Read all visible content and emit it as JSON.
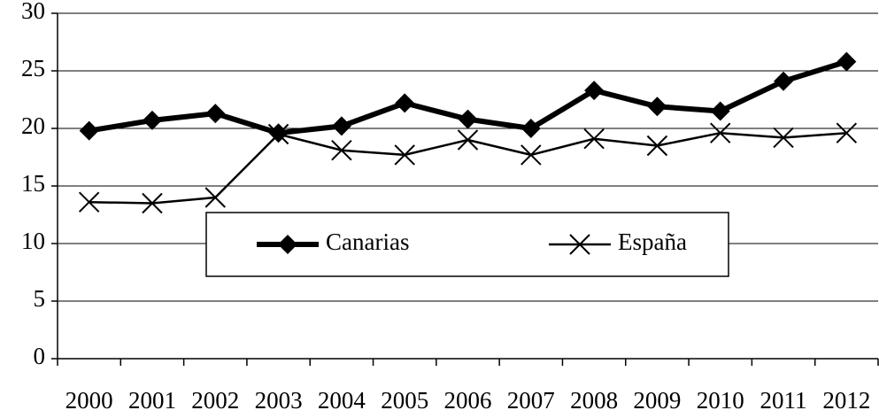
{
  "chart_data": {
    "type": "line",
    "categories": [
      "2000",
      "2001",
      "2002",
      "2003",
      "2004",
      "2005",
      "2006",
      "2007",
      "2008",
      "2009",
      "2010",
      "2011",
      "2012"
    ],
    "series": [
      {
        "name": "Canarias",
        "color": "#000000",
        "marker": "diamond",
        "line_width": 6,
        "values": [
          19.8,
          20.7,
          21.3,
          19.6,
          20.2,
          22.2,
          20.8,
          20.0,
          23.3,
          21.9,
          21.5,
          24.1,
          25.8
        ]
      },
      {
        "name": "España",
        "color": "#000000",
        "marker": "x",
        "line_width": 2.5,
        "values": [
          13.6,
          13.5,
          14.0,
          19.5,
          18.1,
          17.7,
          19.0,
          17.7,
          19.1,
          18.5,
          19.6,
          19.2,
          19.6
        ]
      }
    ],
    "ylim": [
      0,
      30
    ],
    "yticks": [
      0,
      5,
      10,
      15,
      20,
      25,
      30
    ],
    "grid": true,
    "legend": "center"
  }
}
